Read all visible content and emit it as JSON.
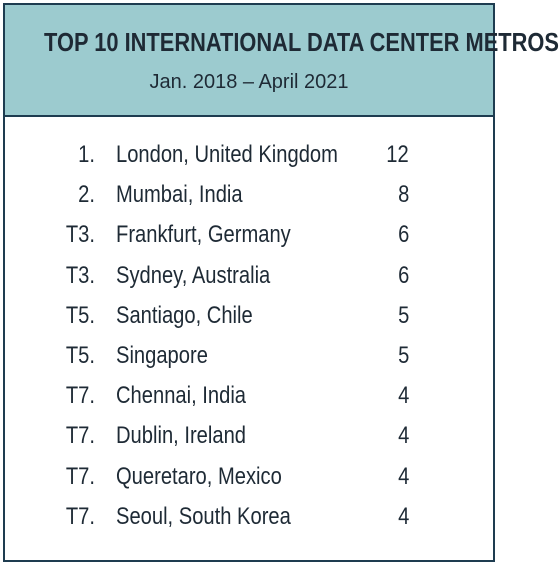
{
  "header": {
    "title": "TOP 10 INTERNATIONAL DATA CENTER METROS",
    "subtitle": "Jan. 2018 – April 2021"
  },
  "rows": [
    {
      "rank": "1.",
      "city": "London, United Kingdom",
      "count": "12"
    },
    {
      "rank": "2.",
      "city": "Mumbai, India",
      "count": "8"
    },
    {
      "rank": "T3.",
      "city": "Frankfurt, Germany",
      "count": "6"
    },
    {
      "rank": "T3.",
      "city": "Sydney, Australia",
      "count": "6"
    },
    {
      "rank": "T5.",
      "city": "Santiago, Chile",
      "count": "5"
    },
    {
      "rank": "T5.",
      "city": "Singapore",
      "count": "5"
    },
    {
      "rank": "T7.",
      "city": "Chennai, India",
      "count": "4"
    },
    {
      "rank": "T7.",
      "city": "Dublin, Ireland",
      "count": "4"
    },
    {
      "rank": "T7.",
      "city": "Queretaro, Mexico",
      "count": "4"
    },
    {
      "rank": "T7.",
      "city": "Seoul, South Korea",
      "count": "4"
    }
  ],
  "colors": {
    "header_bg": "#9ccbcf",
    "border": "#1e3c50",
    "text": "#1e2a35"
  }
}
